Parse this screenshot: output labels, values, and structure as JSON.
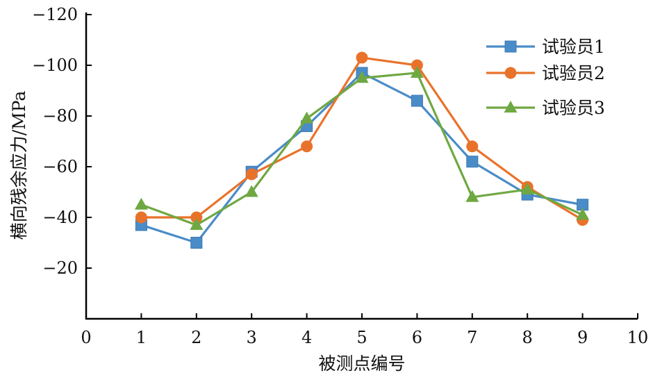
{
  "chart_data": {
    "type": "line",
    "title": "",
    "xlabel": "被测点编号",
    "ylabel": "横向残余应力/MPa",
    "xlim": [
      0,
      10
    ],
    "ylim": [
      0,
      -120
    ],
    "x_ticks": [
      "0",
      "1",
      "2",
      "3",
      "4",
      "5",
      "6",
      "7",
      "8",
      "9",
      "10"
    ],
    "y_ticks": [
      "−20",
      "−40",
      "−60",
      "−80",
      "−100",
      "−120"
    ],
    "x": [
      1,
      2,
      3,
      4,
      5,
      6,
      7,
      8,
      9
    ],
    "grid": false,
    "legend_position": "top-right",
    "series": [
      {
        "name": "试验员1",
        "color": "#4a8cc7",
        "marker": "square",
        "values": [
          -37,
          -30,
          -58,
          -76,
          -97,
          -86,
          -62,
          -49,
          -45
        ]
      },
      {
        "name": "试验员2",
        "color": "#e9722b",
        "marker": "circle",
        "values": [
          -40,
          -40,
          -57,
          -68,
          -103,
          -100,
          -68,
          -52,
          -39
        ]
      },
      {
        "name": "试验员3",
        "color": "#6fa842",
        "marker": "triangle",
        "values": [
          -45,
          -37,
          -50,
          -79,
          -95,
          -97,
          -48,
          -51,
          -41
        ]
      }
    ]
  }
}
